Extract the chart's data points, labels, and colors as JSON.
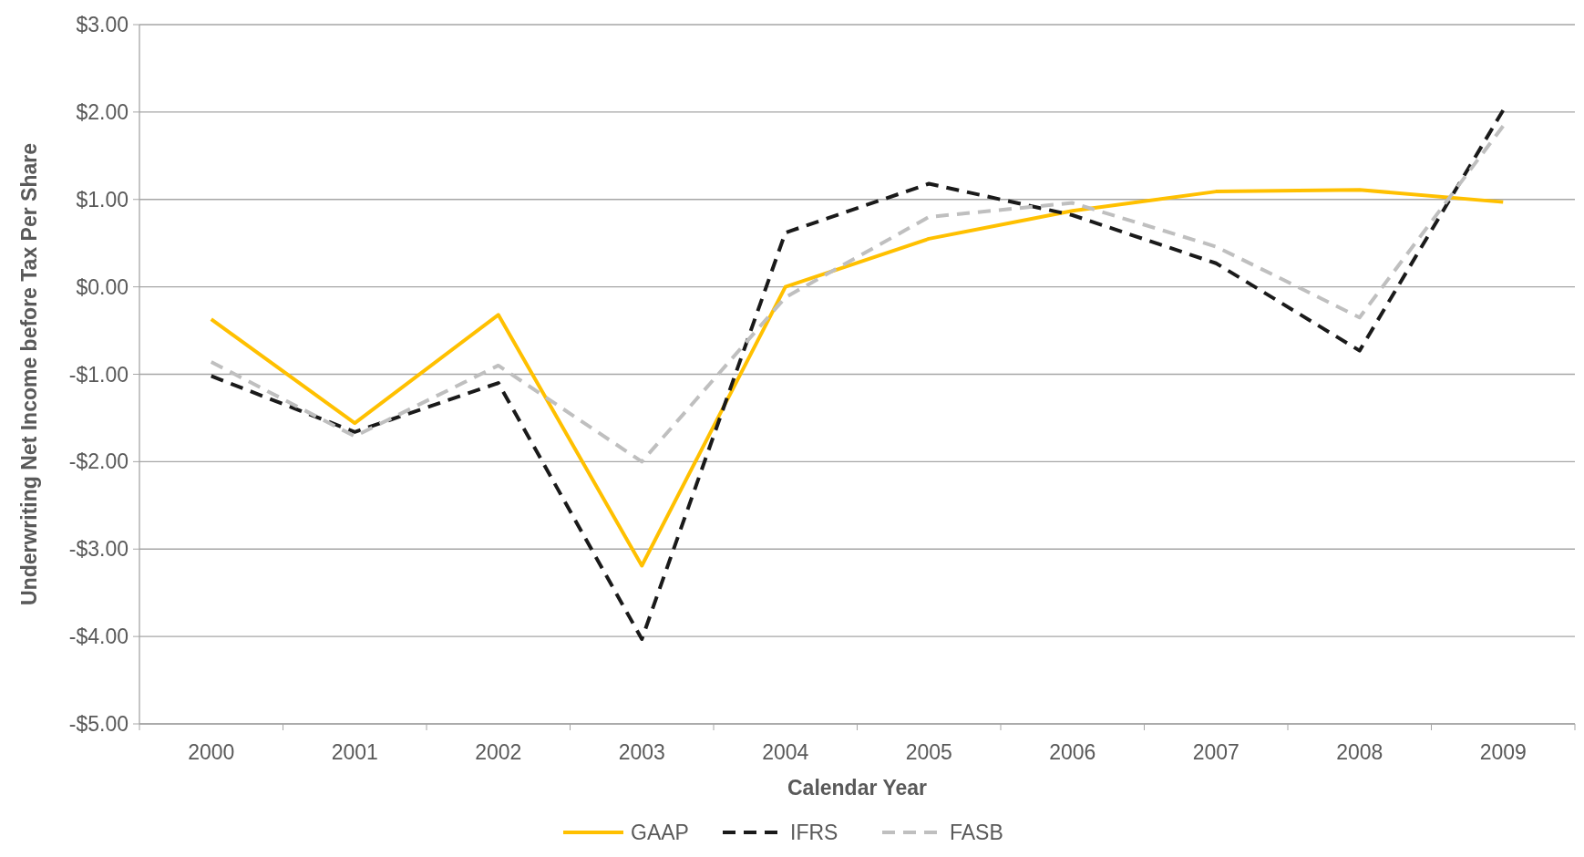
{
  "chart_data": {
    "type": "line",
    "xlabel": "Calendar Year",
    "ylabel": "Underwriting Net Income before Tax Per Share",
    "categories": [
      "2000",
      "2001",
      "2002",
      "2003",
      "2004",
      "2005",
      "2006",
      "2007",
      "2008",
      "2009"
    ],
    "series": [
      {
        "name": "GAAP",
        "color": "#ffc000",
        "line_style": "solid",
        "values": [
          -0.37,
          -1.56,
          -0.32,
          -3.19,
          0.0,
          0.55,
          0.87,
          1.09,
          1.11,
          0.97
        ]
      },
      {
        "name": "IFRS",
        "color": "#1a1a1a",
        "line_style": "dashed",
        "values": [
          -1.02,
          -1.66,
          -1.1,
          -4.03,
          0.62,
          1.18,
          0.82,
          0.27,
          -0.73,
          2.02
        ]
      },
      {
        "name": "FASB",
        "color": "#bfbfbf",
        "line_style": "dashed",
        "values": [
          -0.86,
          -1.71,
          -0.9,
          -2.0,
          -0.12,
          0.8,
          0.96,
          0.46,
          -0.35,
          1.84
        ]
      }
    ],
    "ylim": [
      -5,
      3
    ],
    "yticks": [
      {
        "value": -5,
        "label": "-$5.00"
      },
      {
        "value": -4,
        "label": "-$4.00"
      },
      {
        "value": -3,
        "label": "-$3.00"
      },
      {
        "value": -2,
        "label": "-$2.00"
      },
      {
        "value": -1,
        "label": "-$1.00"
      },
      {
        "value": 0,
        "label": "$0.00"
      },
      {
        "value": 1,
        "label": "$1.00"
      },
      {
        "value": 2,
        "label": "$2.00"
      },
      {
        "value": 3,
        "label": "$3.00"
      }
    ],
    "grid": "y",
    "legend": "bottom"
  }
}
